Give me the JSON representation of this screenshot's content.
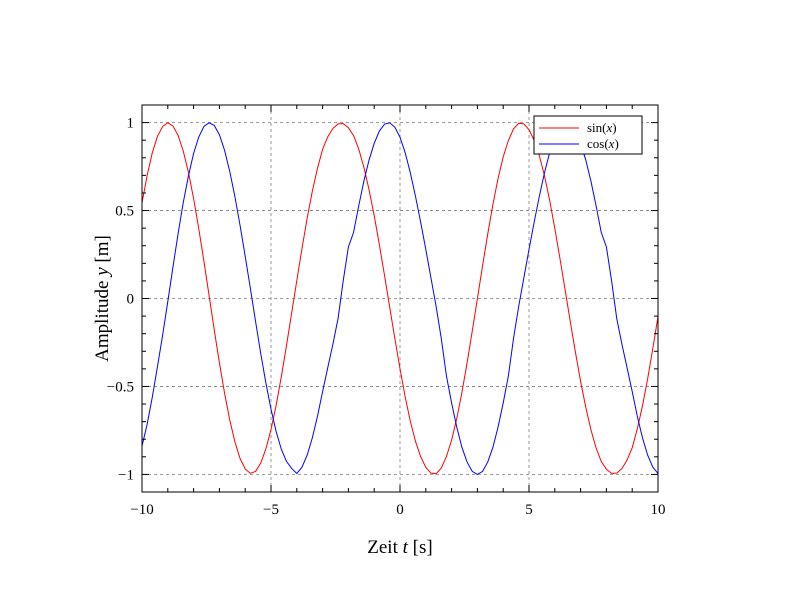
{
  "chart_data": {
    "type": "line",
    "title": "",
    "xlabel": {
      "prefix": "Zeit ",
      "var": "t",
      "suffix": " [s]"
    },
    "ylabel": {
      "prefix": "Amplitude ",
      "var": "y",
      "suffix": " [m]"
    },
    "xlim": [
      -10,
      10
    ],
    "ylim": [
      -1.1,
      1.1
    ],
    "x_ticks": [
      -10,
      -5,
      0,
      5,
      10
    ],
    "x_tick_labels": [
      "−10",
      "−5",
      "0",
      "5",
      "10"
    ],
    "y_ticks": [
      1,
      0.5,
      0,
      -0.5,
      -1
    ],
    "y_tick_labels": [
      "1",
      "0.5",
      "0",
      "−0.5",
      "−1"
    ],
    "grid": true,
    "legend_position": "top-right",
    "x_sample": {
      "start": -10,
      "end": 10,
      "step": 0.2
    },
    "series": [
      {
        "name": {
          "func": "sin(",
          "var": "x",
          "close": ")"
        },
        "color": "#ff0000",
        "values": [
          0.544,
          0.7,
          0.829,
          0.922,
          0.978,
          0.999,
          0.981,
          0.927,
          0.838,
          0.717,
          0.568,
          0.397,
          0.211,
          0.017,
          -0.178,
          -0.366,
          -0.538,
          -0.69,
          -0.815,
          -0.909,
          -0.969,
          -0.994,
          -0.983,
          -0.936,
          -0.856,
          -0.745,
          -0.606,
          -0.444,
          -0.268,
          -0.083,
          0.102,
          0.283,
          0.455,
          0.609,
          0.74,
          0.848,
          0.919,
          0.967,
          0.993,
          0.994,
          0.971,
          0.926,
          0.85,
          0.746,
          0.618,
          0.471,
          0.306,
          0.131,
          -0.049,
          -0.227,
          -0.399,
          -0.559,
          -0.698,
          -0.812,
          -0.899,
          -0.96,
          -0.993,
          -0.996,
          -0.964,
          -0.898,
          -0.805,
          -0.682,
          -0.534,
          -0.366,
          -0.186,
          0.0,
          0.186,
          0.366,
          0.534,
          0.682,
          0.805,
          0.898,
          0.964,
          0.996,
          0.993,
          0.96,
          0.899,
          0.812,
          0.698,
          0.559,
          0.399,
          0.227,
          0.049,
          -0.131,
          -0.306,
          -0.471,
          -0.618,
          -0.746,
          -0.85,
          -0.926,
          -0.971,
          -0.994,
          -0.993,
          -0.967,
          -0.919,
          -0.848,
          -0.74,
          -0.609,
          -0.455,
          -0.283,
          -0.102,
          0.083,
          0.268,
          0.444,
          0.606,
          0.745,
          0.856,
          0.936,
          0.983,
          0.994,
          0.969,
          0.909,
          0.815,
          0.69,
          0.538,
          0.366,
          0.178,
          -0.017,
          -0.211,
          -0.397,
          -0.568,
          -0.717,
          -0.838,
          -0.927,
          -0.981,
          -0.999,
          -0.978,
          -0.922,
          -0.829,
          -0.7,
          -0.544
        ]
      },
      {
        "name": {
          "func": "cos(",
          "var": "x",
          "close": ")"
        },
        "color": "#0000ff",
        "values": [
          -0.839,
          -0.714,
          -0.56,
          -0.386,
          -0.208,
          -0.017,
          0.179,
          0.37,
          0.546,
          0.697,
          0.825,
          0.918,
          0.978,
          0.999,
          0.984,
          0.931,
          0.843,
          0.723,
          0.58,
          0.416,
          0.24,
          0.058,
          -0.129,
          -0.311,
          -0.479,
          -0.629,
          -0.757,
          -0.857,
          -0.926,
          -0.966,
          -0.995,
          -0.959,
          -0.891,
          -0.793,
          -0.671,
          -0.529,
          -0.393,
          -0.259,
          -0.113,
          0.102,
          0.293,
          0.376,
          0.527,
          0.667,
          0.787,
          0.882,
          0.952,
          0.991,
          0.999,
          0.974,
          0.917,
          0.829,
          0.715,
          0.581,
          0.434,
          0.279,
          0.117,
          -0.045,
          -0.227,
          -0.44,
          -0.594,
          -0.731,
          -0.846,
          -0.93,
          -0.983,
          -1.0,
          -0.983,
          -0.93,
          -0.846,
          -0.731,
          -0.594,
          -0.44,
          -0.227,
          -0.045,
          0.117,
          0.279,
          0.434,
          0.581,
          0.715,
          0.829,
          0.917,
          0.974,
          0.999,
          0.991,
          0.952,
          0.882,
          0.787,
          0.667,
          0.527,
          0.376,
          0.293,
          0.102,
          -0.113,
          -0.259,
          -0.393,
          -0.529,
          -0.671,
          -0.793,
          -0.891,
          -0.959,
          -0.995,
          -0.966,
          -0.926,
          -0.857,
          -0.757,
          -0.629,
          -0.479,
          -0.311,
          -0.129,
          0.058,
          0.24,
          0.416,
          0.58,
          0.723,
          0.843,
          0.931,
          0.984,
          0.999,
          0.978,
          0.918,
          0.825,
          0.697,
          0.546,
          0.37,
          0.179,
          -0.017,
          -0.208,
          -0.386,
          -0.56,
          -0.714,
          -0.839
        ]
      }
    ]
  }
}
